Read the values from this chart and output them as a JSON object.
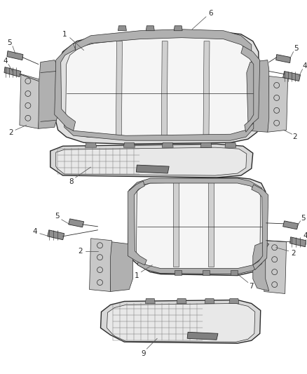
{
  "bg_color": "#ffffff",
  "lc": "#2a2a2a",
  "lc_light": "#888888",
  "lc_mid": "#555555",
  "fc_frame": "#e0e0e0",
  "fc_inner": "#f5f5f5",
  "fc_plate": "#c8c8c8",
  "fc_bracket": "#b0b0b0",
  "fc_cushion": "#d8d8d8",
  "figsize": [
    4.38,
    5.33
  ],
  "dpi": 100,
  "label_fs": 7.5,
  "leader_lw": 0.55
}
